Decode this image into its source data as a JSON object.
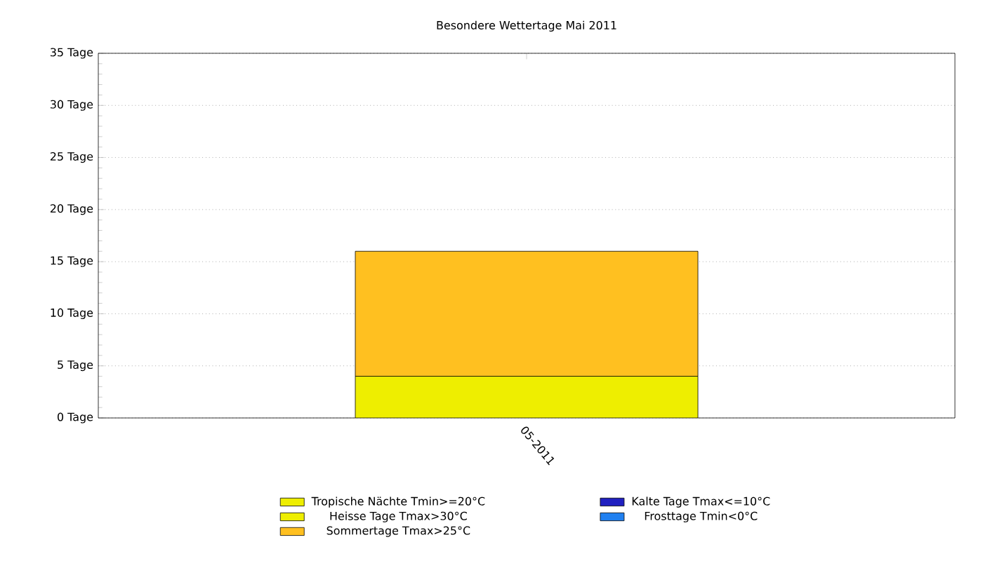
{
  "chart_data": {
    "type": "bar",
    "title": "Besondere Wettertage Mai 2011",
    "stacked": true,
    "categories": [
      "05-2011"
    ],
    "series": [
      {
        "name": "Tropische Nächte Tmin>=20°C",
        "color": "#eeee00",
        "values": [
          0
        ]
      },
      {
        "name": "Heisse Tage Tmax>30°C",
        "color": "#eeee00",
        "values": [
          4
        ]
      },
      {
        "name": "Sommertage Tmax>25°C",
        "color": "#ffc020",
        "values": [
          12
        ]
      },
      {
        "name": "Kalte Tage Tmax<=10°C",
        "color": "#2020c0",
        "values": [
          0
        ]
      },
      {
        "name": "Frosttage Tmin<0°C",
        "color": "#2080f0",
        "values": [
          0
        ]
      }
    ],
    "ylim": [
      0,
      35
    ],
    "yticks": [
      {
        "value": 0,
        "label": "0 Tage"
      },
      {
        "value": 5,
        "label": "5 Tage"
      },
      {
        "value": 10,
        "label": "10 Tage"
      },
      {
        "value": 15,
        "label": "15 Tage"
      },
      {
        "value": 20,
        "label": "20 Tage"
      },
      {
        "value": 25,
        "label": "25 Tage"
      },
      {
        "value": 30,
        "label": "30 Tage"
      },
      {
        "value": 35,
        "label": "35 Tage"
      }
    ],
    "grid": "y",
    "legend": "bottom"
  }
}
